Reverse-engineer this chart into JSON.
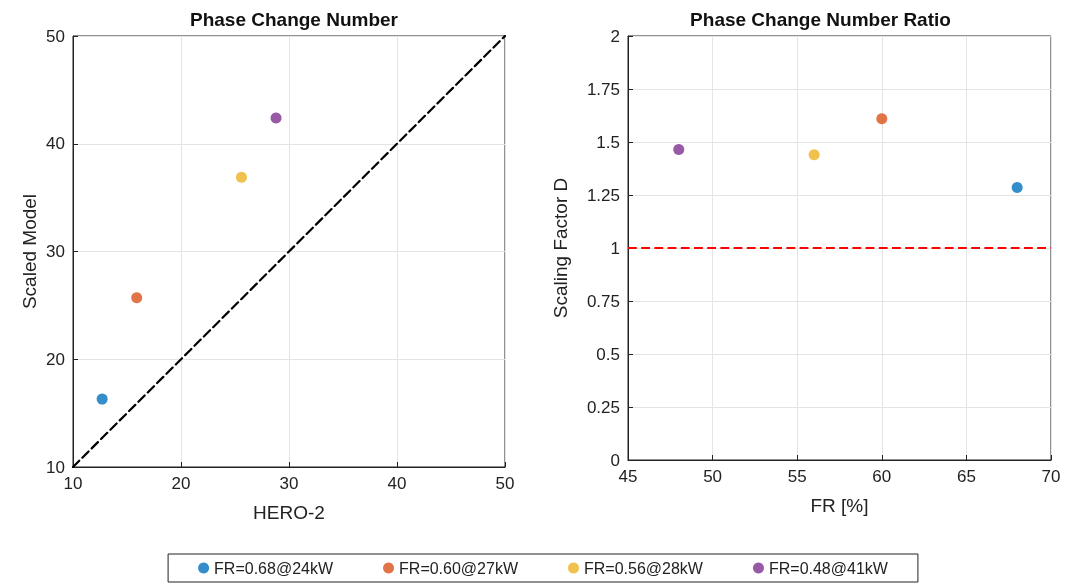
{
  "chart_data": [
    {
      "type": "scatter",
      "title": "Phase Change Number",
      "xlabel": "HERO-2",
      "ylabel": "Scaled Model",
      "xlim": [
        10,
        50
      ],
      "ylim": [
        10,
        50
      ],
      "xticks": [
        10,
        20,
        30,
        40,
        50
      ],
      "yticks": [
        10,
        20,
        30,
        40,
        50
      ],
      "grid": true,
      "legend": "bottom",
      "marker": "circle",
      "series": [
        {
          "name": "FR=0.68@24kW",
          "color": "#0072bd",
          "x": [
            12.7
          ],
          "values": [
            16.3
          ]
        },
        {
          "name": "FR=0.60@27kW",
          "color": "#d95319",
          "x": [
            15.9
          ],
          "values": [
            25.7
          ]
        },
        {
          "name": "FR=0.56@28kW",
          "color": "#edb120",
          "x": [
            25.6
          ],
          "values": [
            36.9
          ]
        },
        {
          "name": "FR=0.48@41kW",
          "color": "#7e2f8e",
          "x": [
            28.8
          ],
          "values": [
            42.4
          ]
        },
        {
          "type": "line",
          "color": "#000000",
          "line_style": "dashed",
          "marker": "none",
          "x": [
            10,
            50
          ],
          "values": [
            10,
            50
          ]
        }
      ]
    },
    {
      "type": "scatter",
      "title": "Phase Change Number Ratio",
      "xlabel": "FR [%]",
      "ylabel": "Scaling Factor D",
      "xlim": [
        45,
        70
      ],
      "ylim": [
        0,
        2
      ],
      "xticks": [
        45,
        50,
        55,
        60,
        65,
        70
      ],
      "yticks": [
        0,
        0.25,
        0.5,
        0.75,
        1,
        1.25,
        1.5,
        1.75,
        2
      ],
      "grid": true,
      "marker": "circle",
      "series": [
        {
          "color": "#0072bd",
          "x": [
            68
          ],
          "values": [
            1.285
          ]
        },
        {
          "color": "#d95319",
          "x": [
            60
          ],
          "values": [
            1.61
          ]
        },
        {
          "color": "#edb120",
          "x": [
            56
          ],
          "values": [
            1.44
          ]
        },
        {
          "color": "#7e2f8e",
          "x": [
            48
          ],
          "values": [
            1.465
          ]
        }
      ],
      "ref_lines": [
        {
          "axis": "y",
          "value": 1,
          "color": "#ff0000",
          "line_style": "dashed"
        }
      ]
    }
  ]
}
